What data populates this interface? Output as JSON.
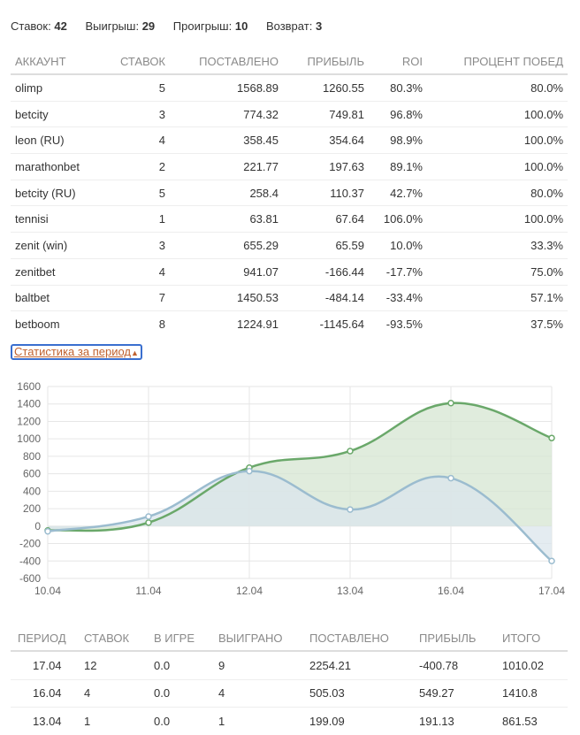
{
  "summary": [
    {
      "label": "Ставок:",
      "value": "42"
    },
    {
      "label": "Выигрыш:",
      "value": "29"
    },
    {
      "label": "Проигрыш:",
      "value": "10"
    },
    {
      "label": "Возврат:",
      "value": "3"
    }
  ],
  "accounts": {
    "columns": [
      "АККАУНТ",
      "СТАВОК",
      "ПОСТАВЛЕНО",
      "ПРИБЫЛЬ",
      "ROI",
      "ПРОЦЕНТ ПОБЕД"
    ],
    "rows": [
      [
        "olimp",
        "5",
        "1568.89",
        "1260.55",
        "80.3%",
        "80.0%"
      ],
      [
        "betcity",
        "3",
        "774.32",
        "749.81",
        "96.8%",
        "100.0%"
      ],
      [
        "leon (RU)",
        "4",
        "358.45",
        "354.64",
        "98.9%",
        "100.0%"
      ],
      [
        "marathonbet",
        "2",
        "221.77",
        "197.63",
        "89.1%",
        "100.0%"
      ],
      [
        "betcity (RU)",
        "5",
        "258.4",
        "110.37",
        "42.7%",
        "80.0%"
      ],
      [
        "tennisi",
        "1",
        "63.81",
        "67.64",
        "106.0%",
        "100.0%"
      ],
      [
        "zenit (win)",
        "3",
        "655.29",
        "65.59",
        "10.0%",
        "33.3%"
      ],
      [
        "zenitbet",
        "4",
        "941.07",
        "-166.44",
        "-17.7%",
        "75.0%"
      ],
      [
        "baltbet",
        "7",
        "1450.53",
        "-484.14",
        "-33.4%",
        "57.1%"
      ],
      [
        "betboom",
        "8",
        "1224.91",
        "-1145.64",
        "-93.5%",
        "37.5%"
      ]
    ]
  },
  "period_toggle": {
    "label": "Статистика за период",
    "icon": "chevron-up-icon"
  },
  "chart_data": {
    "type": "area",
    "categories": [
      "10.04",
      "11.04",
      "12.04",
      "13.04",
      "16.04",
      "17.04"
    ],
    "series": [
      {
        "color": "#6aa86a",
        "fill": "#d5e6d2",
        "values": [
          -50,
          40,
          670,
          860,
          1410,
          1010
        ]
      },
      {
        "color": "#9bbccf",
        "fill": "#dbe6ec",
        "values": [
          -60,
          110,
          630,
          190,
          550,
          -400
        ]
      }
    ],
    "ylim": [
      -600,
      1600
    ],
    "yticks": [
      "-600",
      "-400",
      "-200",
      "0",
      "200",
      "400",
      "600",
      "800",
      "1000",
      "1200",
      "1400",
      "1600"
    ],
    "grid": true,
    "legend": "none"
  },
  "periods": {
    "columns": [
      "ПЕРИОД",
      "СТАВОК",
      "В ИГРЕ",
      "ВЫИГРАНО",
      "ПОСТАВЛЕНО",
      "ПРИБЫЛЬ",
      "ИТОГО"
    ],
    "rows": [
      [
        "17.04",
        "12",
        "0.0",
        "9",
        "2254.21",
        "-400.78",
        "1010.02"
      ],
      [
        "16.04",
        "4",
        "0.0",
        "4",
        "505.03",
        "549.27",
        "1410.8"
      ],
      [
        "13.04",
        "1",
        "0.0",
        "1",
        "199.09",
        "191.13",
        "861.53"
      ]
    ]
  }
}
